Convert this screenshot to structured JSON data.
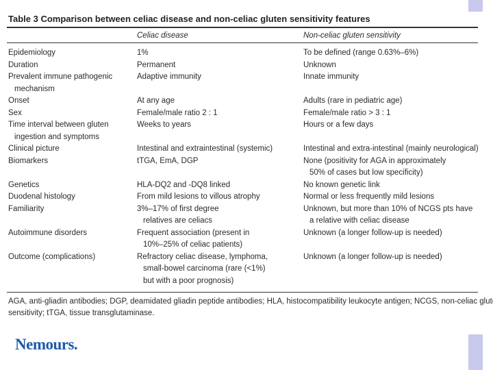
{
  "table": {
    "title": "Table 3  Comparison between celiac disease and non-celiac gluten sensitivity features",
    "headers": [
      "Celiac disease",
      "Non-celiac gluten sensitivity"
    ],
    "rows": [
      [
        [
          "Epidemiology"
        ],
        [
          "1%"
        ],
        [
          "To be defined (range 0.63%–6%)"
        ]
      ],
      [
        [
          "Duration"
        ],
        [
          "Permanent"
        ],
        [
          "Unknown"
        ]
      ],
      [
        [
          "Prevalent immune pathogenic",
          "mechanism"
        ],
        [
          "Adaptive immunity"
        ],
        [
          "Innate immunity"
        ]
      ],
      [
        [
          "Onset"
        ],
        [
          "At any age"
        ],
        [
          "Adults (rare in pediatric age)"
        ]
      ],
      [
        [
          "Sex"
        ],
        [
          "Female/male ratio 2 : 1"
        ],
        [
          "Female/male ratio > 3 : 1"
        ]
      ],
      [
        [
          "Time interval between gluten",
          "ingestion and symptoms"
        ],
        [
          "Weeks to years"
        ],
        [
          "Hours or a few days"
        ]
      ],
      [
        [
          "Clinical picture"
        ],
        [
          "Intestinal and extraintestinal (systemic)"
        ],
        [
          "Intestinal and extra-intestinal (mainly neurological)"
        ]
      ],
      [
        [
          "Biomarkers"
        ],
        [
          "tTGA, EmA, DGP"
        ],
        [
          "None (positivity for AGA in approximately",
          "50% of cases but low specificity)"
        ]
      ],
      [
        [
          "Genetics"
        ],
        [
          "HLA-DQ2 and -DQ8 linked"
        ],
        [
          "No known genetic link"
        ]
      ],
      [
        [
          "Duodenal histology"
        ],
        [
          "From mild lesions to villous atrophy"
        ],
        [
          "Normal or less frequently mild lesions"
        ]
      ],
      [
        [
          "Familiarity"
        ],
        [
          "3%–17% of first degree",
          "relatives are celiacs"
        ],
        [
          "Unknown, but more than 10% of NCGS pts have",
          "a relative with celiac disease"
        ]
      ],
      [
        [
          "Autoimmune disorders"
        ],
        [
          "Frequent association (present in",
          "10%–25% of celiac patients)"
        ],
        [
          "Unknown (a longer follow-up is needed)"
        ]
      ],
      [
        [
          "Outcome (complications)"
        ],
        [
          "Refractory celiac disease, lymphoma,",
          "small-bowel carcinoma (rare (<1%)",
          "but with a poor prognosis)"
        ],
        [
          "Unknown (a longer follow-up is needed)"
        ]
      ]
    ],
    "footnote": [
      "AGA, anti-gliadin antibodies; DGP, deamidated gliadin peptide antibodies; HLA, histocompatibility leukocyte antigen; NCGS, non-celiac gluten",
      "sensitivity; tTGA, tissue transglutaminase."
    ]
  },
  "logo": "Nemours."
}
